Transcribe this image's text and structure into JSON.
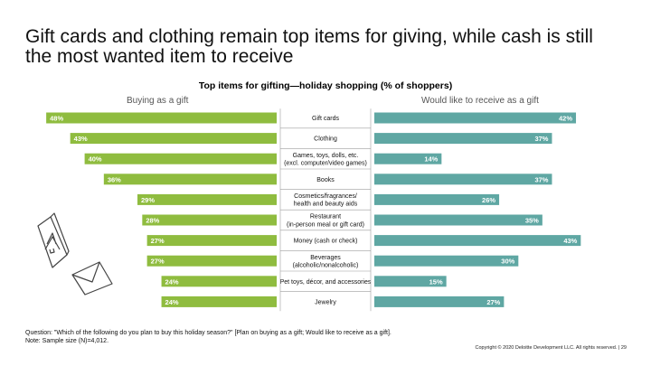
{
  "title_lines": [
    "Gift cards and clothing remain top items for giving, while cash is still",
    "the most wanted item to receive"
  ],
  "footnote_lines": [
    "Question: \"Which of the following do you plan to buy this holiday season?\" [Plan on buying as a gift; Would like to receive as a gift].",
    "Note: Sample size (N)=4,012."
  ],
  "copyright": "Copyright © 2020 Deloitte Development LLC. All rights reserved.  |   29",
  "colors": {
    "buying": "#8fbc3f",
    "receive": "#5fa7a3",
    "divider": "#9e9e9e"
  },
  "chart_data": {
    "type": "bar",
    "title": "Top items for gifting—holiday shopping (% of shoppers)",
    "categories": [
      [
        "Gift cards"
      ],
      [
        "Clothing"
      ],
      [
        "Games, toys, dolls, etc.",
        "(excl. computer/video games)"
      ],
      [
        "Books"
      ],
      [
        "Cosmetics/fragrances/",
        "health and beauty aids"
      ],
      [
        "Restaurant",
        "(in-person meal or gift card)"
      ],
      [
        "Money (cash or check)"
      ],
      [
        "Beverages",
        "(alcoholic/nonalcoholic)"
      ],
      [
        "Pet toys, décor, and accessories"
      ],
      [
        "Jewelry"
      ]
    ],
    "series": [
      {
        "name": "Buying as a gift",
        "values": [
          48,
          43,
          40,
          36,
          29,
          28,
          27,
          27,
          24,
          24
        ]
      },
      {
        "name": "Would like to receive as a gift",
        "values": [
          42,
          37,
          14,
          37,
          26,
          35,
          43,
          30,
          15,
          27
        ]
      }
    ],
    "value_suffix": "%"
  }
}
